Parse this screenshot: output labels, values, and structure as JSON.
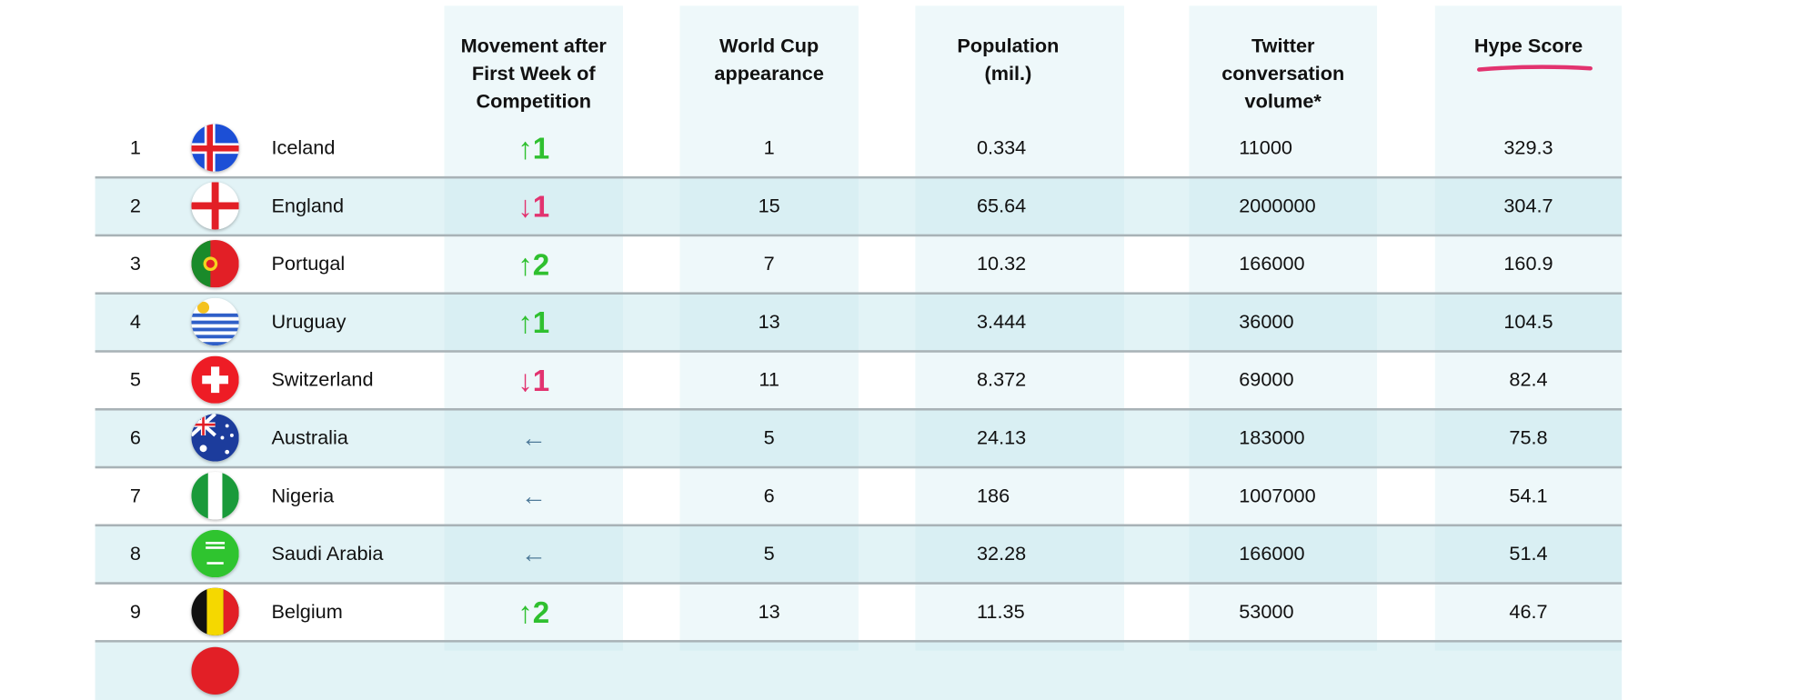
{
  "headers": {
    "movement": "Movement after First Week of Competition",
    "world_cup": "World Cup appearance",
    "population": "Population (mil.)",
    "twitter": "Twitter conversation volume*",
    "hype": "Hype Score"
  },
  "colors": {
    "up": "#2fc02f",
    "down": "#e2336f",
    "same": "#4e7a99",
    "hype_underline": "#e2336f"
  },
  "rows": [
    {
      "rank": "1",
      "country": "Iceland",
      "flag": "iceland-flag",
      "movement": "↑1",
      "dir": "up",
      "world_cup": "1",
      "population": "0.334",
      "twitter": "11000",
      "hype": "329.3"
    },
    {
      "rank": "2",
      "country": "England",
      "flag": "england-flag",
      "movement": "↓1",
      "dir": "down",
      "world_cup": "15",
      "population": "65.64",
      "twitter": "2000000",
      "hype": "304.7"
    },
    {
      "rank": "3",
      "country": "Portugal",
      "flag": "portugal-flag",
      "movement": "↑2",
      "dir": "up",
      "world_cup": "7",
      "population": "10.32",
      "twitter": "166000",
      "hype": "160.9"
    },
    {
      "rank": "4",
      "country": "Uruguay",
      "flag": "uruguay-flag",
      "movement": "↑1",
      "dir": "up",
      "world_cup": "13",
      "population": "3.444",
      "twitter": "36000",
      "hype": "104.5"
    },
    {
      "rank": "5",
      "country": "Switzerland",
      "flag": "switzerland-flag",
      "movement": "↓1",
      "dir": "down",
      "world_cup": "11",
      "population": "8.372",
      "twitter": "69000",
      "hype": "82.4"
    },
    {
      "rank": "6",
      "country": "Australia",
      "flag": "australia-flag",
      "movement": "←",
      "dir": "same",
      "world_cup": "5",
      "population": "24.13",
      "twitter": "183000",
      "hype": "75.8"
    },
    {
      "rank": "7",
      "country": "Nigeria",
      "flag": "nigeria-flag",
      "movement": "←",
      "dir": "same",
      "world_cup": "6",
      "population": "186",
      "twitter": "1007000",
      "hype": "54.1"
    },
    {
      "rank": "8",
      "country": "Saudi Arabia",
      "flag": "saudi-arabia-flag",
      "movement": "←",
      "dir": "same",
      "world_cup": "5",
      "population": "32.28",
      "twitter": "166000",
      "hype": "51.4"
    },
    {
      "rank": "9",
      "country": "Belgium",
      "flag": "belgium-flag",
      "movement": "↑2",
      "dir": "up",
      "world_cup": "13",
      "population": "11.35",
      "twitter": "53000",
      "hype": "46.7"
    }
  ]
}
